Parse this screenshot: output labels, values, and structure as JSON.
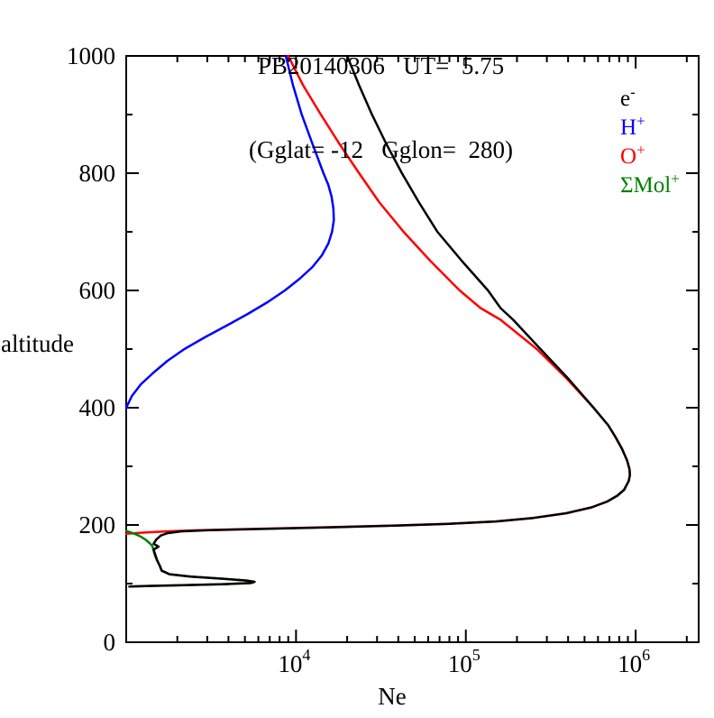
{
  "chart_data": {
    "type": "line",
    "title": "PB20140306   UT=  5.75",
    "subtitle": "(Gglat= -12   Gglon=  280)",
    "xlabel": "Ne",
    "ylabel": "altitude",
    "x_scale": "log",
    "xlim": [
      1000,
      2350000
    ],
    "ylim": [
      0,
      1000
    ],
    "x_major_ticks": [
      10000,
      100000,
      1000000
    ],
    "x_tick_exponents": [
      "4",
      "5",
      "6"
    ],
    "x_tick_base": "10",
    "y_major_ticks": [
      0,
      200,
      400,
      600,
      800,
      1000
    ],
    "y_minor_ticks": [
      100,
      300,
      500,
      700,
      900
    ],
    "grid": false,
    "legend_position": "top-right-inside",
    "frame_color": "#000000",
    "legend": [
      {
        "label": "e",
        "sup": "-",
        "color": "#000000"
      },
      {
        "label": "H",
        "sup": "+",
        "color": "#0000ff"
      },
      {
        "label": "O",
        "sup": "+",
        "color": "#ff0000"
      },
      {
        "label": "ΣMol",
        "sup": "+",
        "color": "#008000"
      }
    ],
    "series": [
      {
        "name": "H+",
        "key": "h-plus",
        "color": "#0000ff",
        "points": [
          [
            1000,
            8700
          ],
          [
            950,
            9600
          ],
          [
            900,
            10800
          ],
          [
            850,
            12500
          ],
          [
            800,
            14500
          ],
          [
            780,
            15500
          ],
          [
            760,
            16200
          ],
          [
            740,
            16600
          ],
          [
            720,
            16700
          ],
          [
            700,
            16300
          ],
          [
            680,
            15500
          ],
          [
            660,
            14200
          ],
          [
            640,
            12500
          ],
          [
            620,
            10500
          ],
          [
            600,
            8600
          ],
          [
            580,
            6800
          ],
          [
            560,
            5200
          ],
          [
            540,
            3900
          ],
          [
            520,
            2900
          ],
          [
            500,
            2200
          ],
          [
            480,
            1750
          ],
          [
            460,
            1450
          ],
          [
            440,
            1220
          ],
          [
            420,
            1080
          ],
          [
            400,
            1000
          ]
        ]
      },
      {
        "name": "O+",
        "key": "o-plus",
        "color": "#ff0000",
        "points": [
          [
            1000,
            9000
          ],
          [
            950,
            11000
          ],
          [
            900,
            14000
          ],
          [
            850,
            18000
          ],
          [
            800,
            23500
          ],
          [
            750,
            31000
          ],
          [
            700,
            43000
          ],
          [
            650,
            62000
          ],
          [
            600,
            92000
          ],
          [
            570,
            122000
          ],
          [
            550,
            160000
          ],
          [
            500,
            262000
          ],
          [
            450,
            392000
          ],
          [
            400,
            565000
          ],
          [
            370,
            690000
          ],
          [
            350,
            760000
          ],
          [
            330,
            830000
          ],
          [
            310,
            890000
          ],
          [
            295,
            920000
          ],
          [
            285,
            925000
          ],
          [
            275,
            910000
          ],
          [
            260,
            855000
          ],
          [
            250,
            780000
          ],
          [
            240,
            680000
          ],
          [
            230,
            550000
          ],
          [
            220,
            390000
          ],
          [
            212,
            250000
          ],
          [
            206,
            150000
          ],
          [
            202,
            78000
          ],
          [
            199,
            38000
          ],
          [
            196,
            14500
          ],
          [
            193,
            5200
          ],
          [
            191,
            2600
          ],
          [
            189,
            1700
          ],
          [
            187,
            1250
          ],
          [
            185,
            1000
          ]
        ]
      },
      {
        "name": "ΣMol+",
        "key": "mol-plus",
        "color": "#008000",
        "points": [
          [
            190,
            1000
          ],
          [
            185,
            1120
          ],
          [
            180,
            1220
          ],
          [
            175,
            1300
          ],
          [
            170,
            1360
          ],
          [
            165,
            1420
          ],
          [
            160,
            1440
          ],
          [
            150,
            1470
          ],
          [
            140,
            1515
          ],
          [
            130,
            1575
          ],
          [
            122,
            1615
          ],
          [
            116,
            1795
          ],
          [
            112,
            2395
          ],
          [
            108,
            3795
          ],
          [
            105,
            5195
          ],
          [
            103,
            5695
          ],
          [
            101,
            5395
          ],
          [
            99,
            3795
          ],
          [
            97,
            1895
          ],
          [
            96,
            1345
          ],
          [
            95,
            1040
          ]
        ]
      },
      {
        "name": "e-",
        "key": "e-minus",
        "color": "#000000",
        "points": [
          [
            1000,
            20000
          ],
          [
            950,
            23500
          ],
          [
            900,
            28000
          ],
          [
            850,
            34000
          ],
          [
            800,
            42000
          ],
          [
            750,
            53000
          ],
          [
            700,
            68000
          ],
          [
            650,
            95000
          ],
          [
            600,
            135000
          ],
          [
            570,
            160000
          ],
          [
            550,
            190000
          ],
          [
            500,
            275000
          ],
          [
            450,
            400000
          ],
          [
            400,
            565000
          ],
          [
            370,
            690000
          ],
          [
            350,
            760000
          ],
          [
            330,
            830000
          ],
          [
            310,
            890000
          ],
          [
            295,
            920000
          ],
          [
            285,
            925000
          ],
          [
            275,
            910000
          ],
          [
            260,
            855000
          ],
          [
            250,
            780000
          ],
          [
            240,
            680000
          ],
          [
            230,
            550000
          ],
          [
            220,
            390000
          ],
          [
            212,
            250000
          ],
          [
            206,
            150000
          ],
          [
            202,
            80000
          ],
          [
            199,
            40000
          ],
          [
            196,
            16000
          ],
          [
            193,
            6000
          ],
          [
            191,
            3000
          ],
          [
            189,
            2100
          ],
          [
            186,
            1750
          ],
          [
            182,
            1600
          ],
          [
            175,
            1500
          ],
          [
            168,
            1450
          ],
          [
            163,
            1550
          ],
          [
            158,
            1450
          ],
          [
            150,
            1480
          ],
          [
            140,
            1520
          ],
          [
            130,
            1580
          ],
          [
            122,
            1620
          ],
          [
            116,
            1800
          ],
          [
            112,
            2400
          ],
          [
            108,
            3800
          ],
          [
            105,
            5200
          ],
          [
            103,
            5700
          ],
          [
            101,
            5400
          ],
          [
            99,
            3800
          ],
          [
            97,
            1900
          ],
          [
            96,
            1350
          ],
          [
            95,
            1050
          ]
        ]
      }
    ]
  }
}
